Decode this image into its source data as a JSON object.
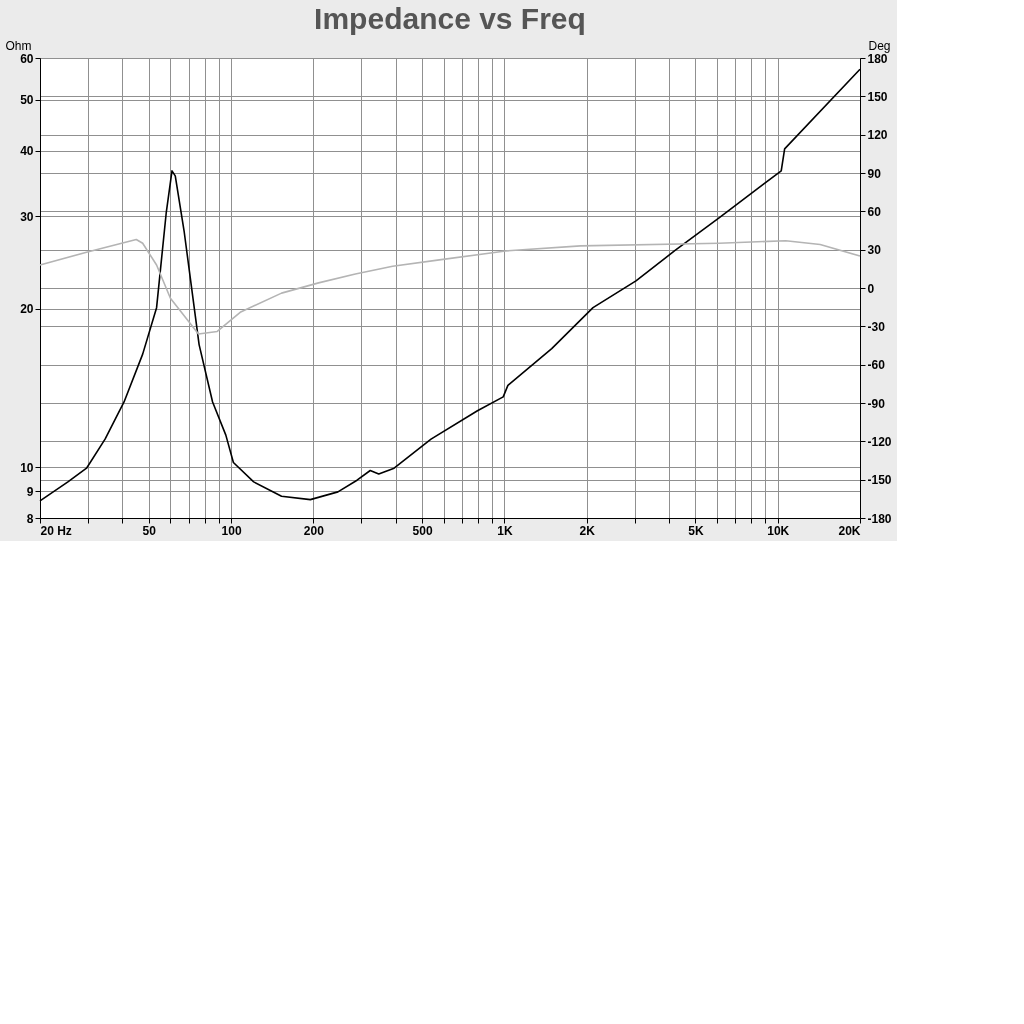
{
  "chart_data": {
    "type": "line",
    "title": "Impedance vs Freq",
    "ylabel": "Ohm",
    "y2label": "Deg",
    "log": "xy",
    "grid": true,
    "xlim": [
      20,
      20000
    ],
    "xticks": [
      {
        "value": 20,
        "label": "20 Hz"
      },
      {
        "value": 30,
        "label": null
      },
      {
        "value": 40,
        "label": null
      },
      50,
      {
        "value": 60,
        "label": null
      },
      {
        "value": 70,
        "label": null
      },
      {
        "value": 80,
        "label": null
      },
      {
        "value": 90,
        "label": null
      },
      100,
      200,
      {
        "value": 300,
        "label": null
      },
      {
        "value": 400,
        "label": null
      },
      500,
      {
        "value": 600,
        "label": null
      },
      {
        "value": 700,
        "label": null
      },
      {
        "value": 800,
        "label": null
      },
      {
        "value": 900,
        "label": null
      },
      {
        "value": 1000,
        "label": "1K"
      },
      {
        "value": 2000,
        "label": "2K"
      },
      {
        "value": 3000,
        "label": null
      },
      {
        "value": 4000,
        "label": null
      },
      {
        "value": 5000,
        "label": "5K"
      },
      {
        "value": 6000,
        "label": null
      },
      {
        "value": 7000,
        "label": null
      },
      {
        "value": 8000,
        "label": null
      },
      {
        "value": 9000,
        "label": null
      },
      {
        "value": 10000,
        "label": "10K"
      },
      {
        "value": 20000,
        "label": "20K"
      }
    ],
    "ylim": [
      8,
      60
    ],
    "yticks": [
      8,
      9,
      10,
      20,
      30,
      40,
      50,
      60
    ],
    "y2lim": [
      -180,
      180
    ],
    "y2ticks": [
      -180,
      -150,
      -120,
      -90,
      -60,
      -30,
      0,
      30,
      60,
      90,
      120,
      150,
      180
    ],
    "series": [
      {
        "color": "#000000",
        "x": [
          20,
          25.3,
          29.6,
          34.6,
          40.6,
          47.5,
          53.4,
          57.9,
          60.8,
          62.5,
          67.4,
          76.4,
          85.6,
          95.7,
          102,
          121,
          153,
          195,
          246,
          289,
          323,
          347,
          395,
          539,
          797,
          990,
          1030,
          1490,
          2110,
          3030,
          4200,
          6100,
          10300,
          10600,
          20000
        ],
        "values": [
          8.62,
          9.37,
          9.95,
          11.3,
          13.3,
          16.4,
          20.1,
          30.4,
          36.6,
          35.8,
          28,
          17.1,
          13.3,
          11.5,
          10.2,
          9.37,
          8.8,
          8.67,
          8.97,
          9.44,
          9.85,
          9.7,
          9.95,
          11.3,
          12.8,
          13.6,
          14.3,
          16.8,
          20.1,
          22.6,
          25.8,
          29.8,
          36.6,
          40.3,
          57.1
        ]
      },
      {
        "color": "#b4b4b4",
        "axis": "y2",
        "x": [
          20,
          29.6,
          45,
          47.5,
          53.4,
          60,
          76,
          89,
          108,
          153,
          209,
          285,
          390,
          578,
          1010,
          1900,
          6100,
          10700,
          14300,
          20000
        ],
        "values": [
          18,
          28,
          38,
          35,
          18,
          -8,
          -36,
          -34,
          -19,
          -4,
          4,
          11,
          17,
          22,
          29,
          33,
          35,
          37,
          34,
          25
        ]
      }
    ]
  }
}
